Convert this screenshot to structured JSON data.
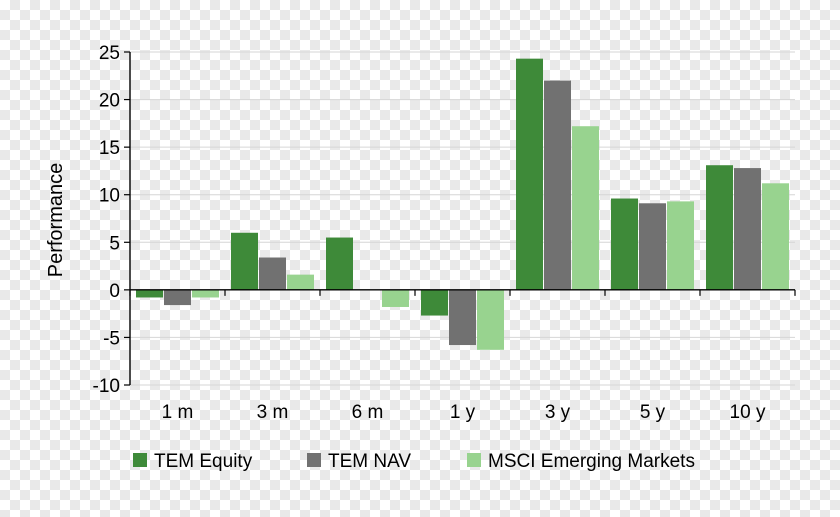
{
  "chart_data": {
    "type": "bar",
    "ylabel": "Performance",
    "xlabel": "",
    "ylim": [
      -10,
      25
    ],
    "yticks": [
      25,
      20,
      15,
      10,
      5,
      0,
      -5,
      -10
    ],
    "grid": true,
    "legend_placement": "bottom",
    "categories": [
      "1 m",
      "3 m",
      "6 m",
      "1 y",
      "3 y",
      "5 y",
      "10 y"
    ],
    "series": [
      {
        "name": "TEM Equity",
        "color": "#3e8a39",
        "values": [
          -0.8,
          6.0,
          5.5,
          -2.7,
          24.3,
          9.6,
          13.1
        ]
      },
      {
        "name": "TEM NAV",
        "color": "#717171",
        "values": [
          -1.6,
          3.4,
          0.0,
          -5.8,
          22.0,
          9.1,
          12.8
        ]
      },
      {
        "name": "MSCI Emerging Markets",
        "color": "#98d38f",
        "values": [
          -0.8,
          1.6,
          -1.8,
          -6.3,
          17.2,
          9.3,
          11.2
        ]
      }
    ]
  }
}
